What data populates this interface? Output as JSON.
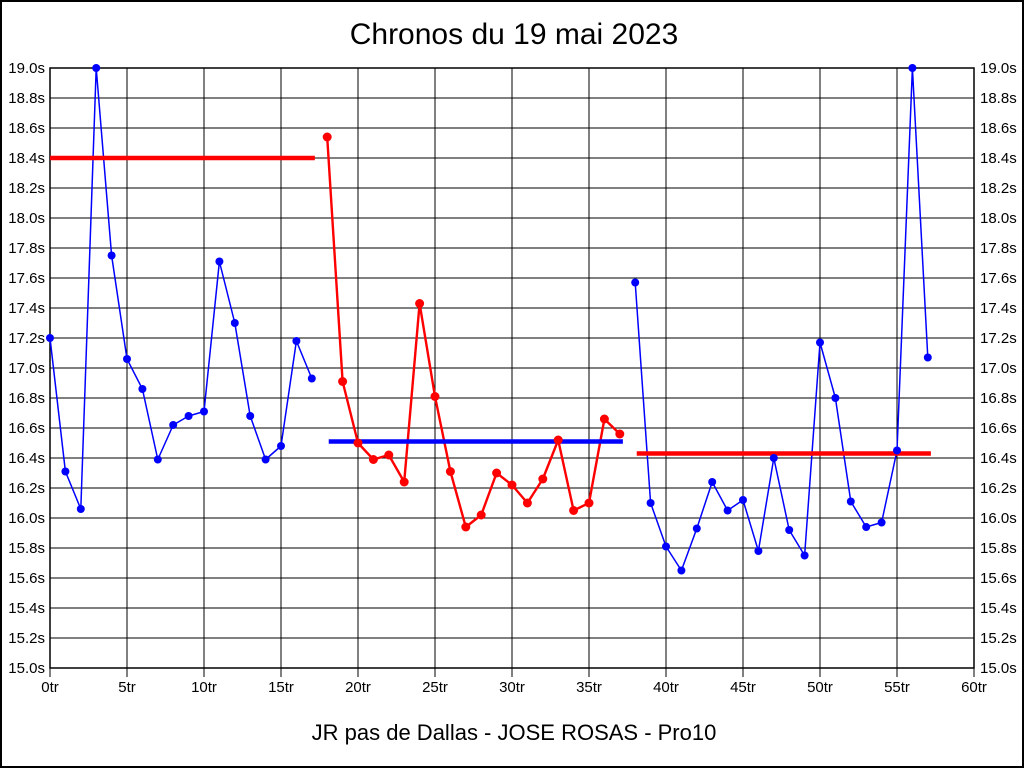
{
  "chart_data": {
    "type": "line",
    "title": "Chronos du 19 mai 2023",
    "footer": "JR pas de Dallas - JOSE ROSAS - Pro10",
    "xlabel": "",
    "ylabel": "",
    "xlim": [
      0,
      60
    ],
    "ylim": [
      15.0,
      19.0
    ],
    "grid": true,
    "legend": "none",
    "x_ticks": [
      0,
      5,
      10,
      15,
      20,
      25,
      30,
      35,
      40,
      45,
      50,
      55,
      60
    ],
    "x_tick_suffix": "tr",
    "y_ticks": [
      19.0,
      18.8,
      18.6,
      18.4,
      18.2,
      18.0,
      17.8,
      17.6,
      17.4,
      17.2,
      17.0,
      16.8,
      16.6,
      16.4,
      16.2,
      16.0,
      15.8,
      15.6,
      15.4,
      15.2,
      15.0
    ],
    "y_tick_suffix": "s",
    "colors": {
      "blue_series": "#0000ff",
      "red_series": "#ff0000",
      "grid": "#000000",
      "text": "#000000"
    },
    "series": [
      {
        "name": "stint-1-blue",
        "color": "#0000ff",
        "start_lap": 0,
        "values": [
          17.2,
          16.31,
          16.06,
          19.0,
          17.75,
          17.06,
          16.86,
          16.39,
          16.62,
          16.68,
          16.71,
          17.71,
          17.3,
          16.68,
          16.39,
          16.48,
          17.18,
          16.93
        ]
      },
      {
        "name": "stint-2-red",
        "color": "#ff0000",
        "start_lap": 18,
        "values": [
          18.54,
          16.91,
          16.5,
          16.39,
          16.42,
          16.24,
          17.43,
          16.81,
          16.31,
          15.94,
          16.02,
          16.3,
          16.22,
          16.1,
          16.26,
          16.52,
          16.05,
          16.1,
          16.66,
          16.56
        ]
      },
      {
        "name": "stint-3-blue",
        "color": "#0000ff",
        "start_lap": 38,
        "values": [
          17.57,
          16.1,
          15.81,
          15.65,
          15.93,
          16.24,
          16.05,
          16.12,
          15.78,
          16.4,
          15.92,
          15.75,
          17.17,
          16.8,
          16.11,
          15.94,
          15.97,
          16.45,
          19.0,
          17.07
        ]
      }
    ],
    "reference_lines": [
      {
        "name": "ref-line-stint-1",
        "color": "#ff0000",
        "y": 18.4,
        "x_start": 0.0,
        "x_end": 17.2
      },
      {
        "name": "ref-line-stint-2",
        "color": "#0000ff",
        "y": 16.51,
        "x_start": 18.1,
        "x_end": 37.2
      },
      {
        "name": "ref-line-stint-3",
        "color": "#ff0000",
        "y": 16.43,
        "x_start": 38.1,
        "x_end": 57.2
      }
    ]
  }
}
